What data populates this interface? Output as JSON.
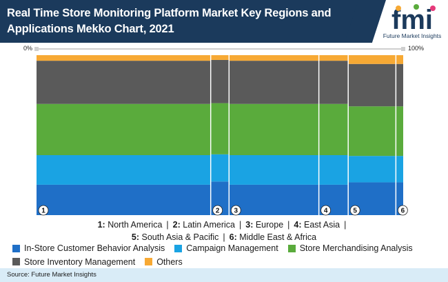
{
  "header": {
    "title": "Real Time Store Monitoring Platform Market Key Regions and Applications Mekko Chart, 2021",
    "logo_letters": "fmi",
    "logo_caption": "Future Market Insights"
  },
  "axis": {
    "left_label": "0%",
    "right_label": "100%"
  },
  "region_legend": [
    {
      "num": "1:",
      "name": "North America"
    },
    {
      "num": "2:",
      "name": "Latin America"
    },
    {
      "num": "3:",
      "name": "Europe"
    },
    {
      "num": "4:",
      "name": "East Asia"
    },
    {
      "num": "5:",
      "name": "South Asia & Pacific"
    },
    {
      "num": "6:",
      "name": "Middle East & Africa"
    }
  ],
  "source": "Source: Future Market Insights",
  "colors": {
    "in_store": "#1f6fc7",
    "campaign": "#1aa3e3",
    "merch": "#5aab3c",
    "inventory": "#5a5a5a",
    "others": "#f7a934"
  },
  "chart_data": {
    "type": "mekko",
    "x_markers": [
      "1",
      "2",
      "3",
      "4",
      "5",
      "6"
    ],
    "column_widths": [
      47.5,
      5.0,
      24.5,
      8.0,
      13.0,
      2.0
    ],
    "series": [
      {
        "name": "In-Store Customer Behavior Analysis",
        "color": "#1f6fc7",
        "values": [
          19.0,
          21.0,
          19.0,
          19.0,
          20.5,
          20.5
        ]
      },
      {
        "name": "Campaign Management",
        "color": "#1aa3e3",
        "values": [
          18.5,
          17.0,
          18.5,
          18.5,
          16.5,
          16.5
        ]
      },
      {
        "name": "Store Merchandising Analysis",
        "color": "#5aab3c",
        "values": [
          32.0,
          32.0,
          32.0,
          32.0,
          31.0,
          31.0
        ]
      },
      {
        "name": "Store Inventory Management",
        "color": "#5a5a5a",
        "values": [
          27.0,
          27.0,
          27.0,
          27.0,
          26.5,
          26.5
        ]
      },
      {
        "name": "Others",
        "color": "#f7a934",
        "values": [
          3.5,
          3.0,
          3.5,
          3.5,
          5.5,
          5.5
        ]
      }
    ],
    "ylim": [
      0,
      100
    ],
    "xlim": [
      0,
      100
    ]
  }
}
